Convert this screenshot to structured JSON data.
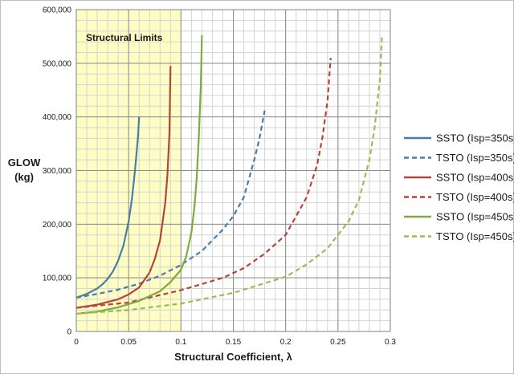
{
  "chart_data": {
    "type": "line",
    "xlabel": "Structural Coefficient, λ",
    "ylabel_lines": [
      "GLOW",
      "(kg)"
    ],
    "xlim": [
      0,
      0.3
    ],
    "ylim": [
      0,
      600000
    ],
    "x_ticks": [
      {
        "value": 0,
        "label": "0"
      },
      {
        "value": 0.05,
        "label": "0.05"
      },
      {
        "value": 0.1,
        "label": "0.1"
      },
      {
        "value": 0.15,
        "label": "0.15"
      },
      {
        "value": 0.2,
        "label": "0.2"
      },
      {
        "value": 0.25,
        "label": "0.25"
      },
      {
        "value": 0.3,
        "label": "0.3"
      }
    ],
    "y_ticks": [
      {
        "value": 0,
        "label": "0"
      },
      {
        "value": 100000,
        "label": "100,000"
      },
      {
        "value": 200000,
        "label": "200,000"
      },
      {
        "value": 300000,
        "label": "300,000"
      },
      {
        "value": 400000,
        "label": "400,000"
      },
      {
        "value": 500000,
        "label": "500,000"
      },
      {
        "value": 600000,
        "label": "600,000"
      }
    ],
    "minor_grid": {
      "x_step": 0.01,
      "y_step": 20000
    },
    "grid": true,
    "legend_position": "right",
    "shaded_region": {
      "x_from": 0,
      "x_to": 0.1,
      "label": "Structural Limits",
      "color": "#fdfdc4"
    },
    "series": [
      {
        "name": "SSTO (Isp=350s)",
        "color": "#4a7ea5",
        "dash": "solid",
        "points": [
          [
            0,
            63000
          ],
          [
            0.01,
            70000
          ],
          [
            0.02,
            80000
          ],
          [
            0.025,
            88000
          ],
          [
            0.03,
            98000
          ],
          [
            0.035,
            112000
          ],
          [
            0.04,
            132000
          ],
          [
            0.045,
            160000
          ],
          [
            0.05,
            205000
          ],
          [
            0.053,
            245000
          ],
          [
            0.055,
            280000
          ],
          [
            0.057,
            320000
          ],
          [
            0.059,
            365000
          ],
          [
            0.06,
            400000
          ]
        ]
      },
      {
        "name": "TSTO (Isp=350s)",
        "color": "#4a7ea5",
        "dash": "dashed",
        "points": [
          [
            0,
            63000
          ],
          [
            0.02,
            70000
          ],
          [
            0.04,
            78000
          ],
          [
            0.06,
            89000
          ],
          [
            0.08,
            104000
          ],
          [
            0.1,
            124000
          ],
          [
            0.12,
            150000
          ],
          [
            0.14,
            190000
          ],
          [
            0.15,
            215000
          ],
          [
            0.16,
            250000
          ],
          [
            0.17,
            320000
          ],
          [
            0.175,
            360000
          ],
          [
            0.18,
            412000
          ]
        ]
      },
      {
        "name": "SSTO (Isp=400s)",
        "color": "#b5453a",
        "dash": "solid",
        "points": [
          [
            0,
            44000
          ],
          [
            0.02,
            50000
          ],
          [
            0.04,
            60000
          ],
          [
            0.05,
            69000
          ],
          [
            0.06,
            82000
          ],
          [
            0.07,
            110000
          ],
          [
            0.075,
            135000
          ],
          [
            0.08,
            170000
          ],
          [
            0.085,
            240000
          ],
          [
            0.087,
            290000
          ],
          [
            0.089,
            370000
          ],
          [
            0.09,
            495000
          ]
        ]
      },
      {
        "name": "TSTO (Isp=400s)",
        "color": "#b5453a",
        "dash": "dashed",
        "points": [
          [
            0,
            44000
          ],
          [
            0.05,
            54000
          ],
          [
            0.1,
            77000
          ],
          [
            0.14,
            100000
          ],
          [
            0.16,
            118000
          ],
          [
            0.18,
            145000
          ],
          [
            0.2,
            180000
          ],
          [
            0.22,
            250000
          ],
          [
            0.23,
            310000
          ],
          [
            0.235,
            360000
          ],
          [
            0.24,
            430000
          ],
          [
            0.243,
            510000
          ]
        ]
      },
      {
        "name": "SSTO (Isp=450s)",
        "color": "#7fac3a",
        "dash": "solid",
        "points": [
          [
            0,
            33000
          ],
          [
            0.02,
            37000
          ],
          [
            0.04,
            45000
          ],
          [
            0.06,
            57000
          ],
          [
            0.08,
            75000
          ],
          [
            0.09,
            92000
          ],
          [
            0.1,
            115000
          ],
          [
            0.105,
            140000
          ],
          [
            0.11,
            185000
          ],
          [
            0.113,
            235000
          ],
          [
            0.115,
            285000
          ],
          [
            0.117,
            360000
          ],
          [
            0.119,
            460000
          ],
          [
            0.12,
            552000
          ]
        ]
      },
      {
        "name": "TSTO (Isp=450s)",
        "color": "#9bbb59",
        "dash": "dashed",
        "points": [
          [
            0,
            33000
          ],
          [
            0.05,
            40000
          ],
          [
            0.1,
            52000
          ],
          [
            0.15,
            72000
          ],
          [
            0.2,
            102000
          ],
          [
            0.22,
            125000
          ],
          [
            0.24,
            155000
          ],
          [
            0.26,
            205000
          ],
          [
            0.27,
            245000
          ],
          [
            0.28,
            320000
          ],
          [
            0.285,
            380000
          ],
          [
            0.29,
            470000
          ],
          [
            0.292,
            548000
          ]
        ]
      }
    ]
  }
}
